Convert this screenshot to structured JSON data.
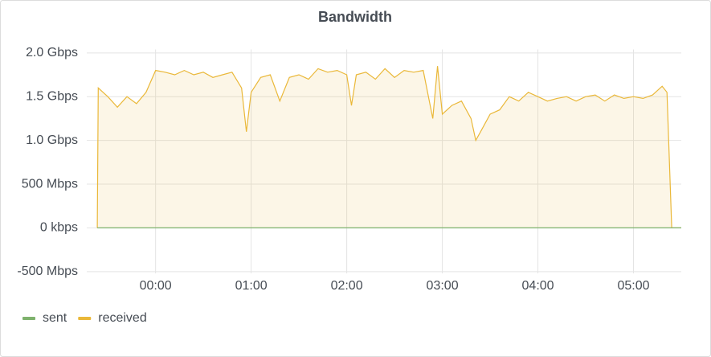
{
  "chart_data": {
    "type": "line",
    "title": "Bandwidth",
    "x": [
      -0.61,
      -0.6,
      -0.5,
      -0.4,
      -0.3,
      -0.2,
      -0.1,
      0,
      0.1,
      0.2,
      0.3,
      0.4,
      0.5,
      0.6,
      0.7,
      0.8,
      0.9,
      0.95,
      1.0,
      1.1,
      1.2,
      1.3,
      1.4,
      1.5,
      1.6,
      1.7,
      1.8,
      1.9,
      2.0,
      2.05,
      2.1,
      2.2,
      2.3,
      2.4,
      2.5,
      2.6,
      2.7,
      2.8,
      2.9,
      2.95,
      3.0,
      3.1,
      3.2,
      3.3,
      3.35,
      3.4,
      3.5,
      3.6,
      3.7,
      3.8,
      3.9,
      4.0,
      4.1,
      4.2,
      4.3,
      4.4,
      4.5,
      4.6,
      4.7,
      4.8,
      4.9,
      5.0,
      5.1,
      5.2,
      5.3,
      5.35,
      5.4,
      5.5
    ],
    "series": [
      {
        "name": "sent",
        "color": "#7eb26d",
        "values": [
          0,
          0,
          0,
          0,
          0,
          0,
          0,
          0,
          0,
          0,
          0,
          0,
          0,
          0,
          0,
          0,
          0,
          0,
          0,
          0,
          0,
          0,
          0,
          0,
          0,
          0,
          0,
          0,
          0,
          0,
          0,
          0,
          0,
          0,
          0,
          0,
          0,
          0,
          0,
          0,
          0,
          0,
          0,
          0,
          0,
          0,
          0,
          0,
          0,
          0,
          0,
          0,
          0,
          0,
          0,
          0,
          0,
          0,
          0,
          0,
          0,
          0,
          0,
          0,
          0,
          0,
          0,
          0
        ]
      },
      {
        "name": "received",
        "color": "#eab839",
        "values": [
          0,
          1.6,
          1.5,
          1.38,
          1.5,
          1.42,
          1.55,
          1.8,
          1.78,
          1.75,
          1.8,
          1.75,
          1.78,
          1.72,
          1.75,
          1.78,
          1.6,
          1.1,
          1.55,
          1.72,
          1.75,
          1.45,
          1.72,
          1.75,
          1.7,
          1.82,
          1.78,
          1.8,
          1.75,
          1.4,
          1.75,
          1.78,
          1.7,
          1.82,
          1.72,
          1.8,
          1.78,
          1.8,
          1.25,
          1.85,
          1.3,
          1.4,
          1.45,
          1.25,
          1.0,
          1.1,
          1.3,
          1.35,
          1.5,
          1.45,
          1.55,
          1.5,
          1.45,
          1.48,
          1.5,
          1.45,
          1.5,
          1.52,
          1.45,
          1.52,
          1.48,
          1.5,
          1.48,
          1.52,
          1.62,
          1.55,
          0,
          0
        ]
      }
    ],
    "xlim": [
      -0.72,
      5.5
    ],
    "xticks": [
      {
        "value": 0,
        "label": "00:00"
      },
      {
        "value": 1,
        "label": "01:00"
      },
      {
        "value": 2,
        "label": "02:00"
      },
      {
        "value": 3,
        "label": "03:00"
      },
      {
        "value": 4,
        "label": "04:00"
      },
      {
        "value": 5,
        "label": "05:00"
      }
    ],
    "ylim": [
      -0.52,
      2.04
    ],
    "yticks": [
      {
        "value": -0.5,
        "label": "-500 Mbps"
      },
      {
        "value": 0,
        "label": "0 kbps"
      },
      {
        "value": 0.5,
        "label": "500 Mbps"
      },
      {
        "value": 1,
        "label": "1.0 Gbps"
      },
      {
        "value": 1.5,
        "label": "1.5 Gbps"
      },
      {
        "value": 2,
        "label": "2.0 Gbps"
      }
    ],
    "grid": true,
    "legend": "bottom-left"
  }
}
